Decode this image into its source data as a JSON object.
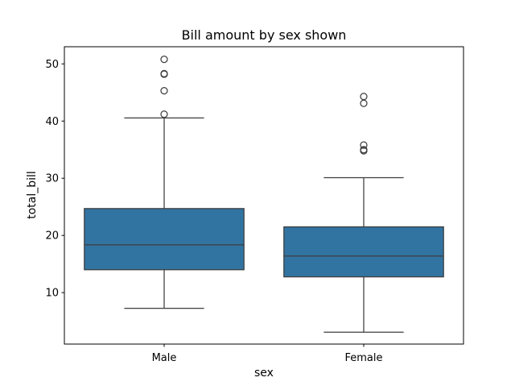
{
  "chart_data": {
    "type": "box",
    "title": "Bill amount by sex shown",
    "xlabel": "sex",
    "ylabel": "total_bill",
    "categories": [
      "Male",
      "Female"
    ],
    "ylim": [
      1.0,
      53.0
    ],
    "yticks": [
      10,
      20,
      30,
      40,
      50
    ],
    "grid": false,
    "box_color": "#3274a1",
    "line_color": "#3d3d3d",
    "boxes": [
      {
        "category": "Male",
        "whisker_low": 7.25,
        "q1": 14.0,
        "median": 18.35,
        "q3": 24.7,
        "whisker_high": 40.55,
        "outliers": [
          41.2,
          48.2,
          48.3,
          45.3,
          50.8
        ]
      },
      {
        "category": "Female",
        "whisker_low": 3.07,
        "q1": 12.75,
        "median": 16.4,
        "q3": 21.5,
        "whisker_high": 30.1,
        "outliers": [
          35.0,
          35.8,
          34.8,
          43.1,
          44.3
        ]
      }
    ]
  }
}
